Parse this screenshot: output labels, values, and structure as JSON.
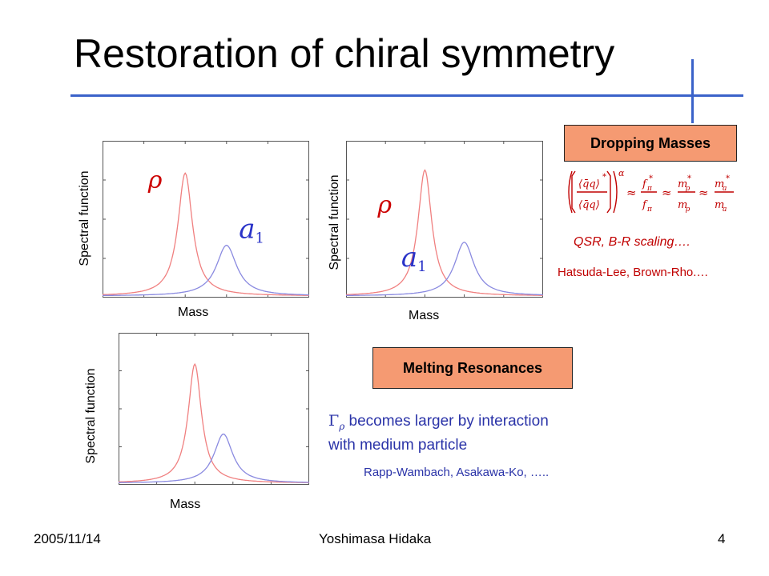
{
  "slide": {
    "title": "Restoration of chiral symmetry",
    "accent_color": "#3a62c9"
  },
  "plots": [
    {
      "ylabel": "Spectral function",
      "xlabel": "Mass",
      "labels": {
        "rho": "ρ",
        "a1": "a",
        "a1_sub": "1"
      }
    },
    {
      "ylabel": "Spectral function",
      "xlabel": "Mass",
      "labels": {
        "rho": "ρ",
        "a1": "a",
        "a1_sub": "1"
      }
    },
    {
      "ylabel": "Spectral function",
      "xlabel": "Mass"
    }
  ],
  "chart_data": [
    {
      "type": "line",
      "series": [
        {
          "peak": "rho",
          "center": 0.4,
          "color": "#f08080"
        },
        {
          "peak": "a1",
          "center": 0.6,
          "color": "#8a8ae0"
        }
      ]
    },
    {
      "type": "line",
      "series": [
        {
          "peak": "rho",
          "center": 0.4,
          "color": "#f08080"
        },
        {
          "peak": "a1",
          "center": 0.6,
          "color": "#8a8ae0"
        }
      ]
    },
    {
      "type": "line",
      "series": [
        {
          "peak": "rho",
          "center": 0.4,
          "color": "#f08080"
        },
        {
          "peak": "a1",
          "center": 0.55,
          "color": "#8a8ae0"
        }
      ]
    }
  ],
  "dropping": {
    "label": "Dropping Masses",
    "box_color": "#f59a72",
    "formula": {
      "qq": "⟨q̄q⟩",
      "star": "*",
      "alpha": "α",
      "approx": "≈",
      "f": "f",
      "pi": "π",
      "m": "m",
      "rho": "ρ",
      "a": "a"
    },
    "qsr": "QSR, B-R scaling….",
    "authors": "Hatsuda-Lee, Brown-Rho.…"
  },
  "melting": {
    "label": "Melting Resonances",
    "gamma": "Γ",
    "gamma_sub": "ρ",
    "line1": "becomes larger by interaction",
    "line2": "with medium particle",
    "authors": "Rapp-Wambach, Asakawa-Ko, ….."
  },
  "footer": {
    "date": "2005/11/14",
    "author": "Yoshimasa Hidaka",
    "page": "4"
  }
}
